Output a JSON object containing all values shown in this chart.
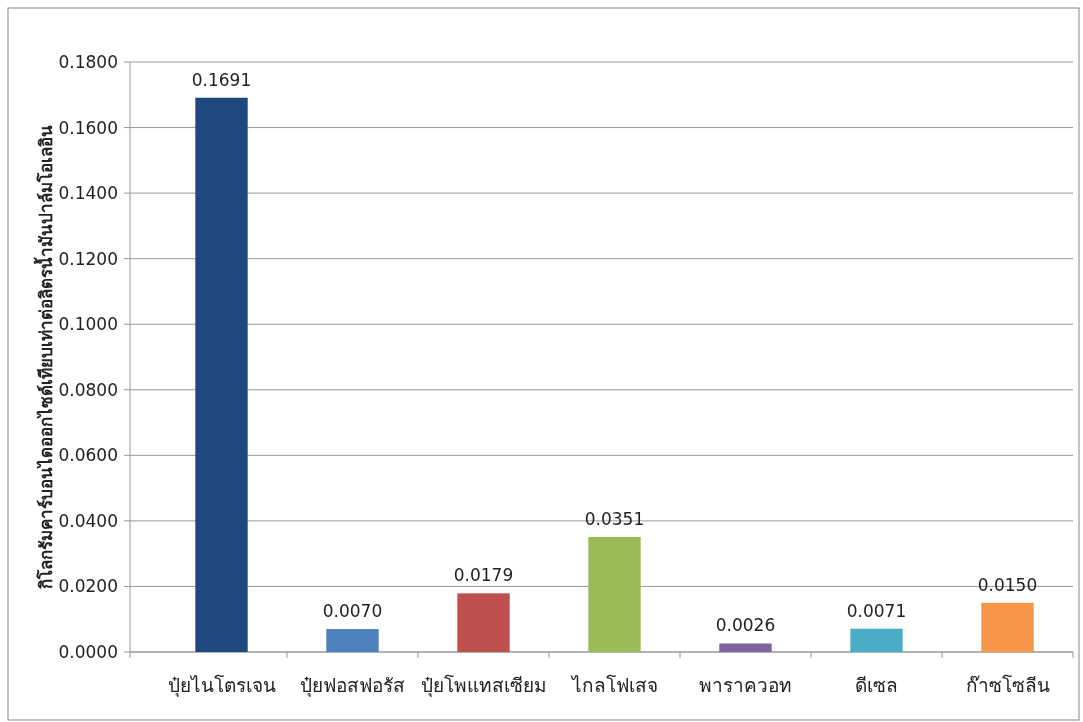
{
  "chart_data": {
    "type": "bar",
    "ylabel": "กิโลกรัมคาร์บอนไดออกไซด์เทียบเท่าต่อลิตรน้ำมันปาล์มโอเลอิน",
    "categories": [
      "ปุ๋ยไนโตรเจน",
      "ปุ๋ยฟอสฟอรัส",
      "ปุ๋ยโพแทสเซียม",
      "ไกลโฟเสจ",
      "พาราควอท",
      "ดีเซล",
      "ก๊าซโซลีน"
    ],
    "values": [
      0.1691,
      0.007,
      0.0179,
      0.0351,
      0.0026,
      0.0071,
      0.015
    ],
    "colors": [
      "#1f497d",
      "#4f81bd",
      "#c0504d",
      "#9bbb59",
      "#8064a2",
      "#4bacc6",
      "#f79646"
    ],
    "ylim": [
      0,
      0.18
    ],
    "yticks": [
      {
        "value": 0,
        "label": "0.0000"
      },
      {
        "value": 0.02,
        "label": "0.0200"
      },
      {
        "value": 0.04,
        "label": "0.0400"
      },
      {
        "value": 0.06,
        "label": "0.0600"
      },
      {
        "value": 0.08,
        "label": "0.0800"
      },
      {
        "value": 0.1,
        "label": "0.1000"
      },
      {
        "value": 0.12,
        "label": "0.1200"
      },
      {
        "value": 0.14,
        "label": "0.1400"
      },
      {
        "value": 0.16,
        "label": "0.1600"
      },
      {
        "value": 0.18,
        "label": "0.1800"
      }
    ],
    "value_labels": [
      "0.1691",
      "0.0070",
      "0.0179",
      "0.0351",
      "0.0026",
      "0.0071",
      "0.0150"
    ],
    "grid": "y"
  }
}
